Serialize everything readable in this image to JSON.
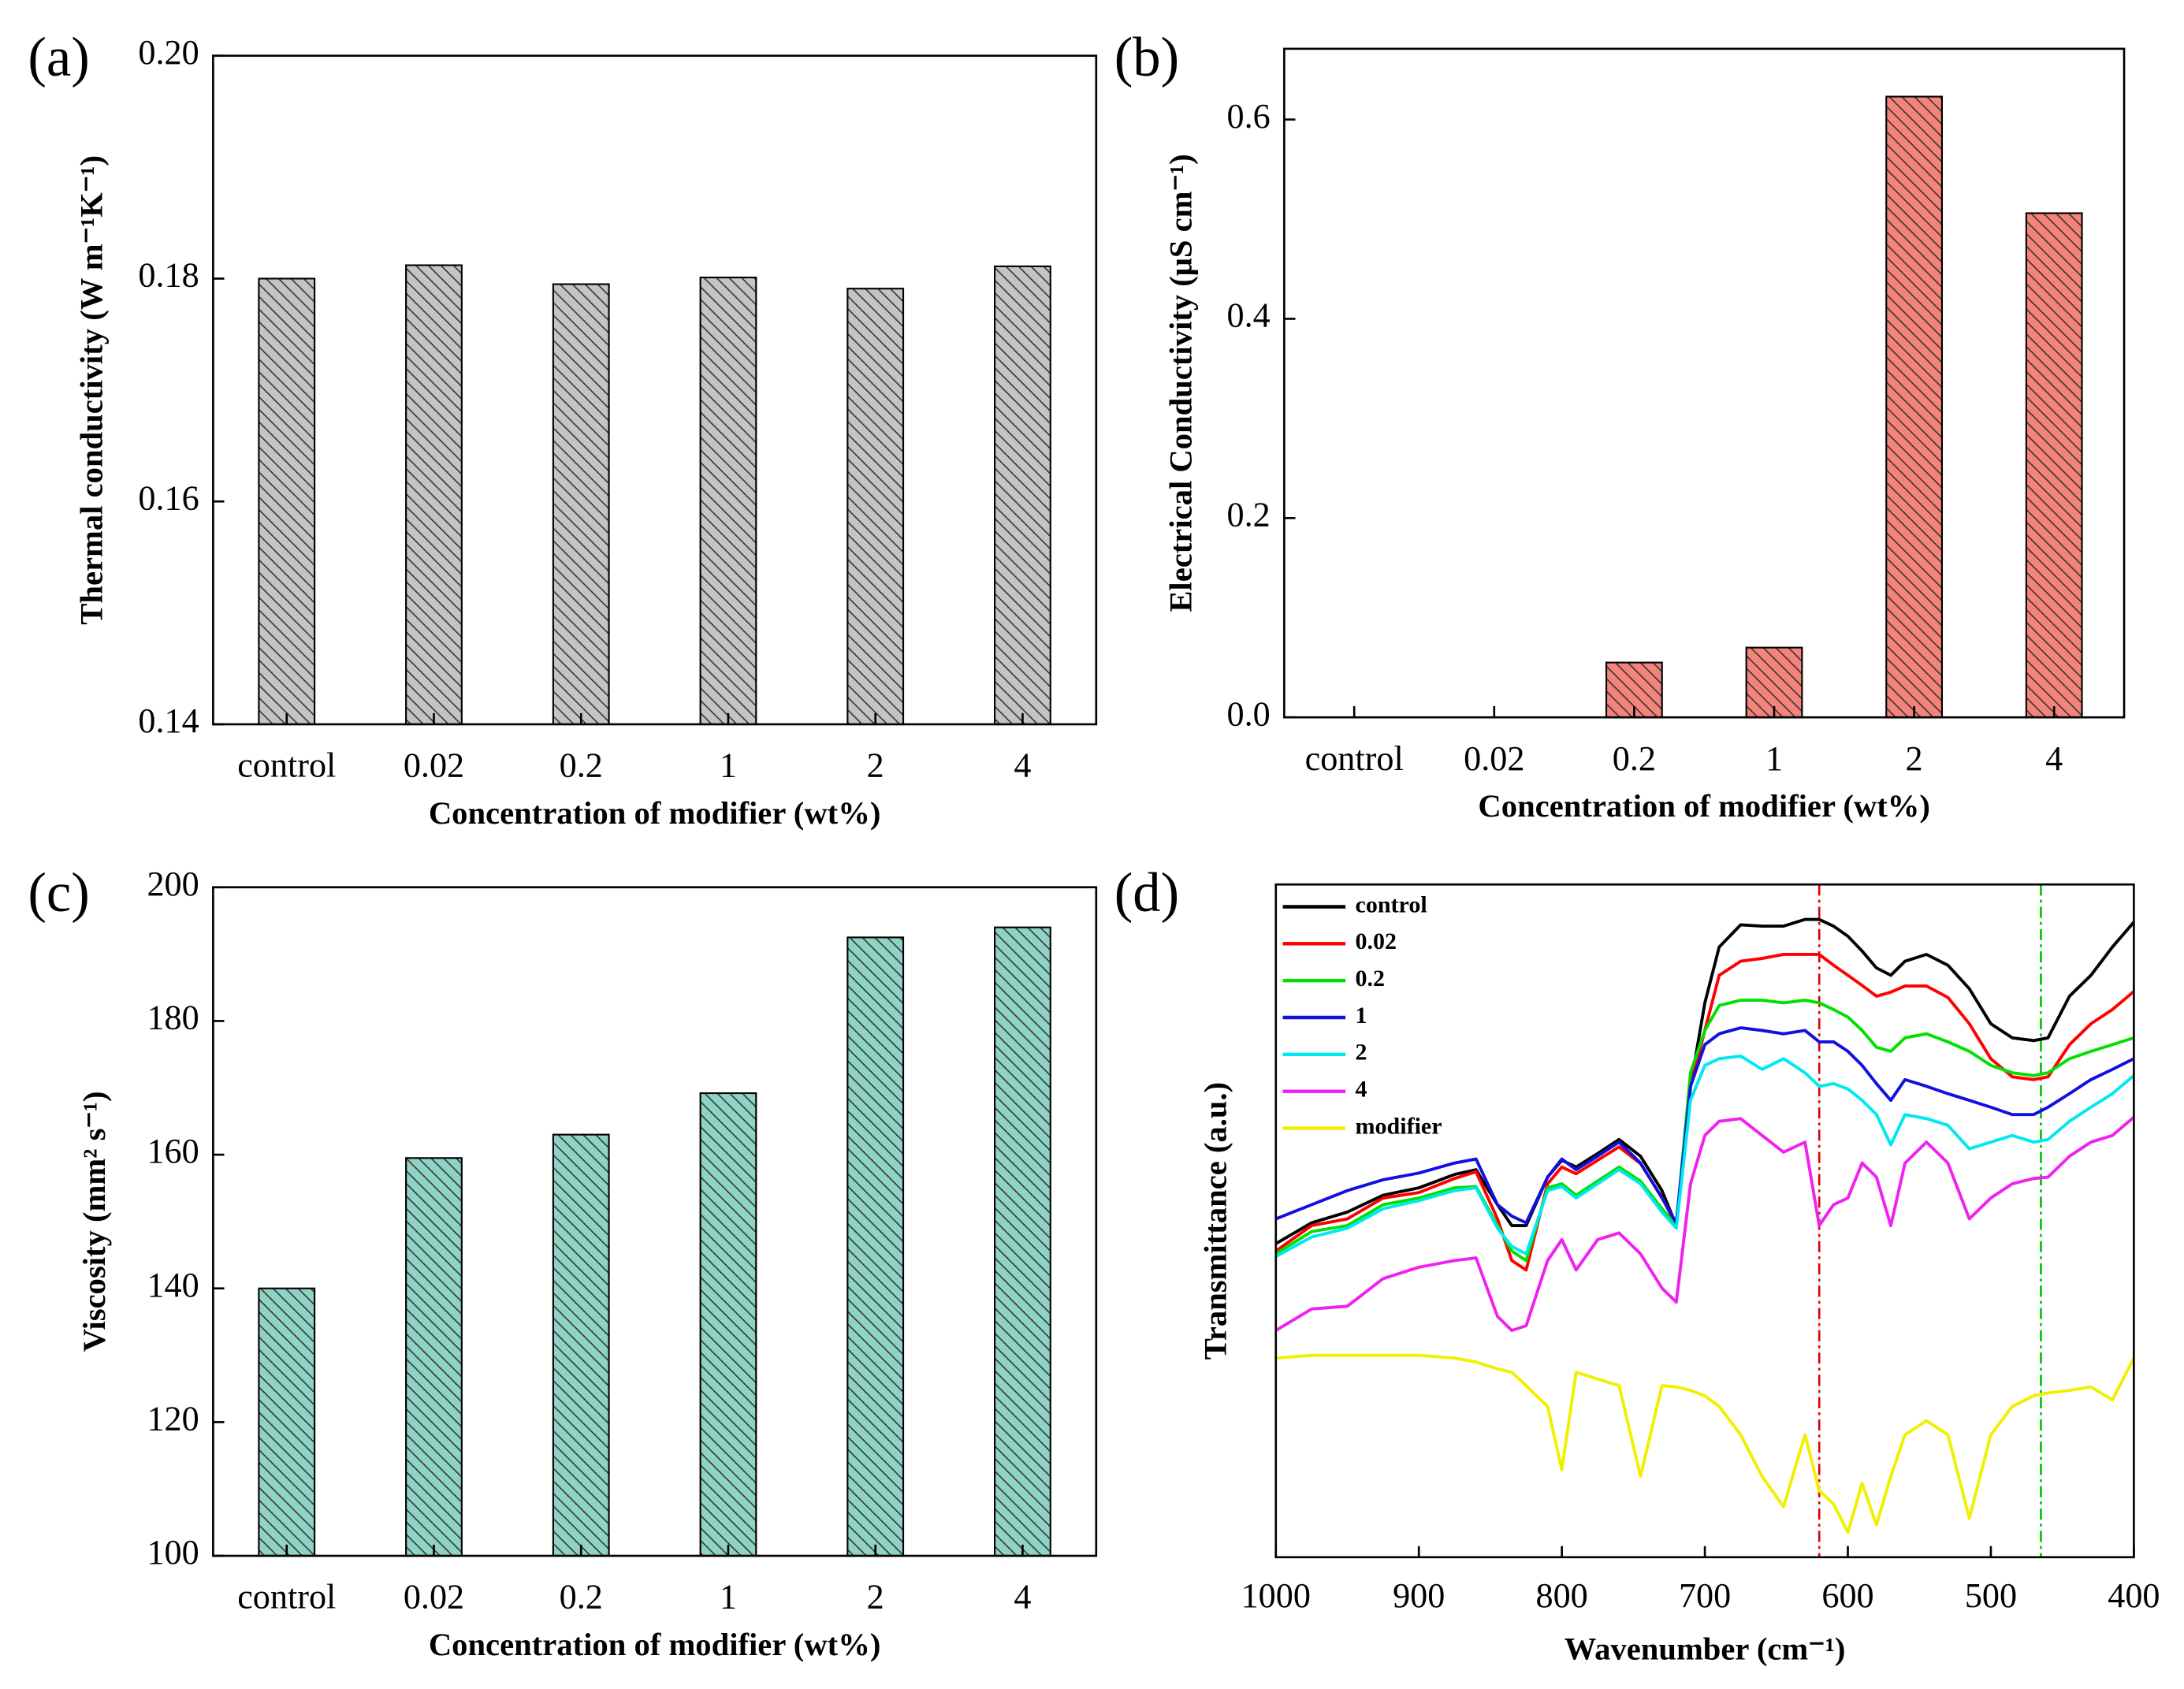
{
  "chart_data": [
    {
      "type": "bar",
      "panel": "(a)",
      "categories": [
        "control",
        "0.02",
        "0.2",
        "1",
        "2",
        "4"
      ],
      "values": [
        0.18,
        0.1812,
        0.1795,
        0.1801,
        0.1791,
        0.1811
      ],
      "color": "#c4c4c4",
      "ylim": [
        0.14,
        0.2
      ],
      "yticks": [
        0.14,
        0.16,
        0.18,
        {
          "value": 0.2,
          "label": "0.20"
        }
      ],
      "xlabel": "Concentration of modifier (wt%)",
      "ylabel": "Thermal conductivity (W m⁻¹K⁻¹)"
    },
    {
      "type": "bar",
      "panel": "(b)",
      "categories": [
        "control",
        "0.02",
        "0.2",
        "1",
        "2",
        "4"
      ],
      "values": [
        0,
        0,
        0.055,
        0.07,
        0.623,
        0.506
      ],
      "color": "#f4837a",
      "ylim": [
        0,
        0.671
      ],
      "yticks": [
        {
          "value": 0,
          "label": "0.0"
        },
        0.2,
        0.4,
        0.6
      ],
      "xlabel": "Concentration of modifier (wt%)",
      "ylabel": "Electrical Conductivity (μS cm⁻¹)"
    },
    {
      "type": "bar",
      "panel": "(c)",
      "categories": [
        "control",
        "0.02",
        "0.2",
        "1",
        "2",
        "4"
      ],
      "values": [
        140,
        159.5,
        163,
        169.2,
        192.5,
        194
      ],
      "color": "#8fd3c4",
      "ylim": [
        100,
        200
      ],
      "yticks": [
        100,
        120,
        140,
        160,
        180,
        200
      ],
      "xlabel": "Concentration of modifier (wt%)",
      "ylabel": "Viscosity (mm² s⁻¹)"
    },
    {
      "type": "line",
      "panel": "(d)",
      "legend": "upper left",
      "xlim": [
        1000,
        400
      ],
      "xticks": [
        1000,
        900,
        800,
        700,
        600,
        500,
        400
      ],
      "ylim": [
        0,
        100
      ],
      "xlabel": "Wavenumber (cm⁻¹)",
      "ylabel": "Transmittance (a.u.)",
      "vlines": [
        {
          "x": 620,
          "color": "#e00000"
        },
        {
          "x": 465,
          "color": "#00c000"
        }
      ],
      "x": [
        1000,
        975,
        950,
        925,
        900,
        875,
        860,
        845,
        835,
        825,
        810,
        800,
        790,
        775,
        760,
        745,
        730,
        720,
        710,
        700,
        690,
        675,
        660,
        645,
        630,
        620,
        610,
        600,
        590,
        580,
        570,
        560,
        545,
        530,
        515,
        500,
        485,
        470,
        460,
        445,
        430,
        415,
        400
      ],
      "series": [
        {
          "name": "control",
          "color": "#000000",
          "values": [
            46.6,
            49.7,
            51.3,
            53.8,
            54.9,
            56.9,
            57.6,
            52.4,
            49.3,
            49.3,
            56.5,
            59.0,
            58.0,
            60.0,
            62.1,
            59.6,
            54.5,
            49.3,
            70.0,
            82.4,
            90.7,
            94.0,
            93.8,
            93.8,
            94.8,
            94.8,
            93.8,
            92.3,
            90.1,
            87.6,
            86.5,
            88.6,
            89.6,
            88.0,
            84.5,
            79.3,
            77.2,
            76.8,
            77.2,
            83.4,
            86.5,
            90.7,
            94.4
          ]
        },
        {
          "name": "0.02",
          "color": "#ff0000",
          "values": [
            45.5,
            49.3,
            50.3,
            53.4,
            54.2,
            56.3,
            57.3,
            50.3,
            44.1,
            42.7,
            55.5,
            58.0,
            57.0,
            59.0,
            61.0,
            58.5,
            53.5,
            49.3,
            70.0,
            78.3,
            86.5,
            88.6,
            89.0,
            89.6,
            89.6,
            89.6,
            88.0,
            86.5,
            85.0,
            83.4,
            84.0,
            84.9,
            84.9,
            83.2,
            79.3,
            74.1,
            71.4,
            71.0,
            71.4,
            76.2,
            79.3,
            81.4,
            84.1
          ]
        },
        {
          "name": "0.2",
          "color": "#00e000",
          "values": [
            45.1,
            48.4,
            49.3,
            52.4,
            53.4,
            54.9,
            55.1,
            49.3,
            45.5,
            44.1,
            54.9,
            55.5,
            53.8,
            55.9,
            58.0,
            55.9,
            51.8,
            49.3,
            72.0,
            78.3,
            82.0,
            82.8,
            82.8,
            82.4,
            82.8,
            82.4,
            81.4,
            80.3,
            78.3,
            75.8,
            75.2,
            77.2,
            77.8,
            76.6,
            75.2,
            73.1,
            72.0,
            71.6,
            72.0,
            74.1,
            75.2,
            76.2,
            77.2
          ]
        },
        {
          "name": "1",
          "color": "#1010e0",
          "values": [
            50.3,
            52.4,
            54.5,
            56.1,
            57.1,
            58.6,
            59.2,
            52.4,
            50.7,
            49.7,
            56.5,
            59.2,
            57.6,
            59.6,
            61.7,
            58.6,
            53.4,
            49.7,
            70.0,
            76.2,
            77.8,
            78.7,
            78.3,
            77.8,
            78.3,
            76.6,
            76.6,
            75.2,
            73.1,
            70.4,
            67.9,
            71.0,
            70.0,
            68.9,
            67.9,
            66.9,
            65.8,
            65.8,
            66.9,
            68.9,
            71.0,
            72.5,
            74.1
          ]
        },
        {
          "name": "2",
          "color": "#00e8f0",
          "values": [
            44.7,
            47.6,
            48.9,
            51.8,
            53.0,
            54.5,
            54.9,
            48.9,
            46.2,
            45.1,
            54.5,
            55.1,
            53.4,
            55.5,
            57.6,
            55.5,
            51.3,
            48.9,
            67.9,
            73.1,
            74.1,
            74.5,
            72.5,
            74.1,
            72.0,
            70.0,
            70.4,
            69.6,
            67.9,
            65.8,
            61.3,
            65.8,
            65.2,
            64.2,
            60.7,
            61.7,
            62.7,
            61.7,
            62.1,
            64.8,
            66.9,
            68.9,
            71.6
          ]
        },
        {
          "name": "4",
          "color": "#f020f0",
          "values": [
            33.7,
            36.9,
            37.3,
            41.4,
            43.1,
            44.1,
            44.5,
            35.8,
            33.7,
            34.4,
            44.1,
            47.2,
            42.7,
            47.2,
            48.2,
            45.1,
            40.0,
            37.9,
            55.5,
            62.7,
            64.8,
            65.2,
            62.7,
            60.2,
            61.7,
            49.3,
            52.4,
            53.4,
            58.6,
            56.5,
            49.3,
            58.6,
            61.7,
            58.6,
            50.3,
            53.4,
            55.5,
            56.3,
            56.5,
            59.6,
            61.7,
            62.7,
            65.4
          ]
        },
        {
          "name": "modifier",
          "color": "#f0f000",
          "values": [
            29.6,
            30.0,
            30.0,
            30.0,
            30.0,
            29.6,
            29.0,
            28.0,
            27.5,
            25.5,
            22.4,
            13.0,
            27.5,
            26.5,
            25.5,
            12.0,
            25.5,
            25.3,
            24.8,
            24.0,
            22.4,
            18.2,
            12.0,
            7.5,
            18.2,
            9.9,
            7.9,
            3.7,
            11.0,
            4.8,
            12.0,
            18.2,
            20.3,
            18.2,
            5.8,
            18.2,
            22.4,
            24.0,
            24.4,
            24.8,
            25.3,
            23.4,
            29.6
          ]
        }
      ]
    }
  ]
}
